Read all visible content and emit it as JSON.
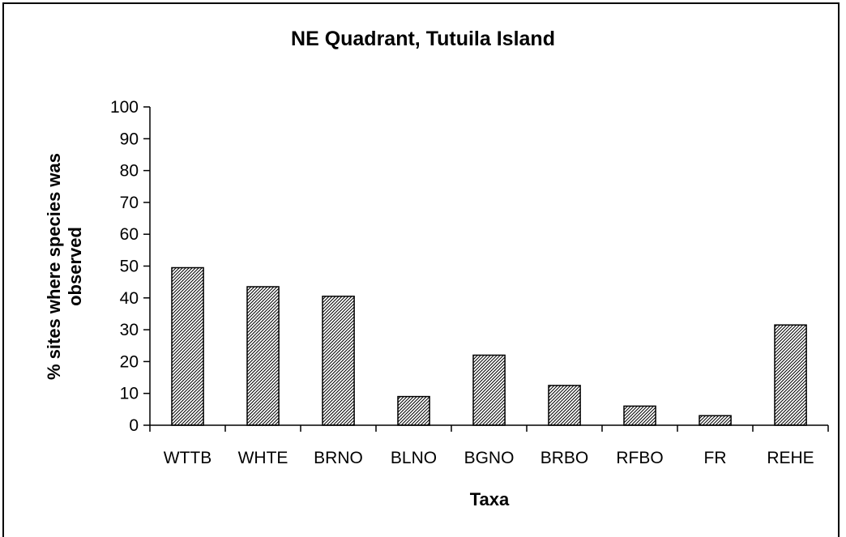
{
  "chart_data": {
    "type": "bar",
    "title": "NE Quadrant, Tutuila Island",
    "xlabel": "Taxa",
    "ylabel_lines": [
      "% sites where species was",
      "observed"
    ],
    "categories": [
      "WTTB",
      "WHTE",
      "BRNO",
      "BLNO",
      "BGNO",
      "BRBO",
      "RFBO",
      "FR",
      "REHE"
    ],
    "values": [
      49.5,
      43.5,
      40.5,
      9,
      22,
      12.5,
      6,
      3,
      31.5
    ],
    "ylim": [
      0,
      100
    ],
    "yticks": [
      "0",
      "10",
      "20",
      "30",
      "40",
      "50",
      "60",
      "70",
      "80",
      "90",
      "100"
    ],
    "grid": false,
    "bar_fill": "diagonal-hatch",
    "bar_color": "#000000"
  }
}
